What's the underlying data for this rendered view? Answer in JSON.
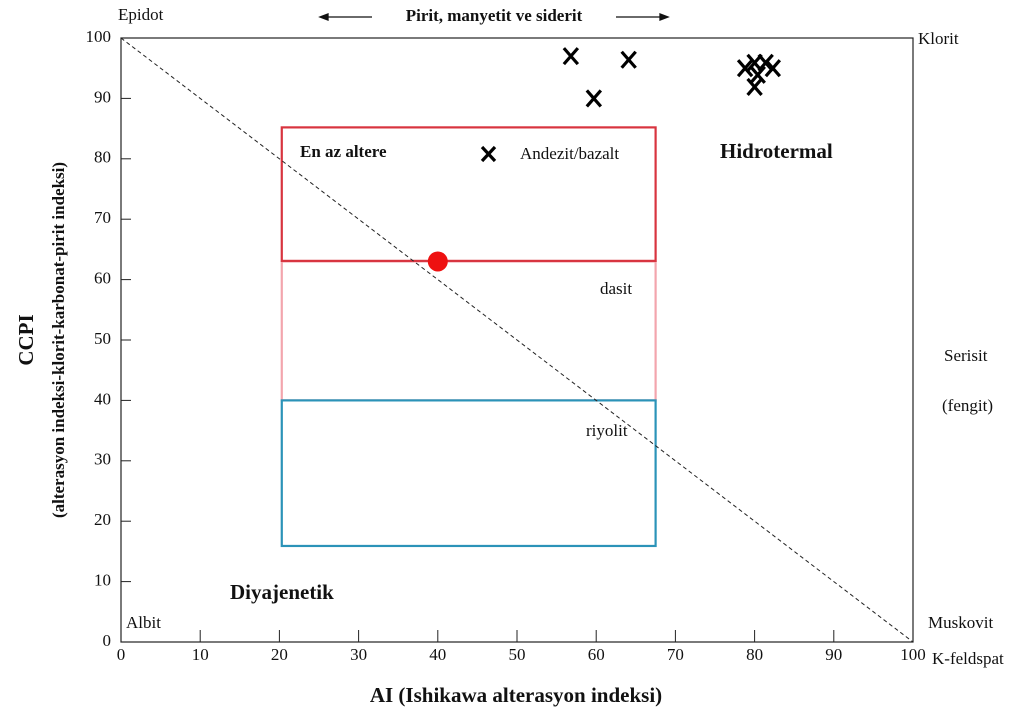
{
  "chart_data": {
    "type": "scatter",
    "xlabel": "AI (Ishikawa alterasyon indeksi)",
    "ylabel": [
      "CCPI",
      "(alterasyon indeksi-klorit-karbonat-pirit indeksi)"
    ],
    "xlim": [
      0,
      100
    ],
    "ylim": [
      0,
      100
    ],
    "xticks": [
      0,
      10,
      20,
      30,
      40,
      50,
      60,
      70,
      80,
      90,
      100
    ],
    "yticks": [
      0,
      10,
      20,
      30,
      40,
      50,
      60,
      70,
      80,
      90,
      100
    ],
    "series": [
      {
        "name": "Andezit/bazalt",
        "marker": "x",
        "color": "#000000",
        "x": [
          56.8,
          64.1,
          59.7,
          78.8,
          80.0,
          81.4,
          82.3,
          80.4,
          80.0
        ],
        "values": [
          97.0,
          96.4,
          90.0,
          95.0,
          95.9,
          95.9,
          95.0,
          93.9,
          91.9
        ]
      },
      {
        "marker": "circle",
        "color": "#ee1111",
        "x": [
          40
        ],
        "values": [
          63
        ]
      }
    ],
    "regions": [
      {
        "xlim": [
          20.3,
          67.5
        ],
        "ylim": [
          40,
          63
        ],
        "color": "#f3a5ad"
      },
      {
        "xlim": [
          20.3,
          67.5
        ],
        "ylim": [
          63.1,
          85.2
        ],
        "color": "#d8343f"
      },
      {
        "xlim": [
          20.3,
          67.5
        ],
        "ylim": [
          15.9,
          40
        ],
        "color": "#2b93b8"
      }
    ],
    "reference_line": {
      "x": [
        0,
        100
      ],
      "y": [
        100,
        0
      ]
    },
    "annotations": [
      "Epidot",
      "Klorit",
      "Albit",
      "Muskovit",
      "K-feldspat",
      "Serisit",
      "(fengit)",
      "Pirit, manyetit ve siderit",
      "En az altere",
      "Hidrotermal",
      "Diyajenetik",
      "dasit",
      "riyolit"
    ]
  }
}
